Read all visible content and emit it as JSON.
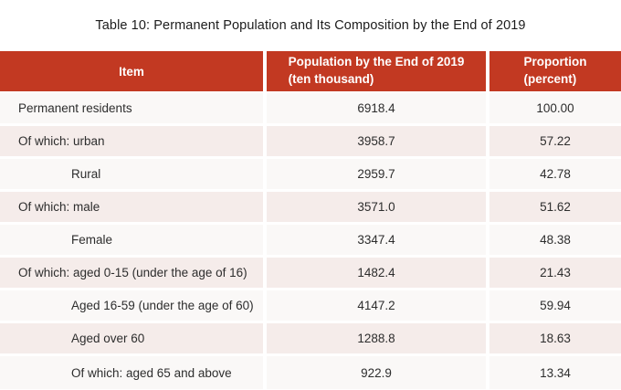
{
  "chart_data": {
    "type": "table",
    "title": "Table 10: Permanent Population and Its Composition by the End of 2019",
    "columns": [
      {
        "label": "Item"
      },
      {
        "line1": "Population by the End of 2019",
        "line2": "(ten thousand)"
      },
      {
        "line1": "Proportion",
        "line2": "(percent)"
      }
    ],
    "rows": [
      {
        "item": "Permanent residents",
        "indent": false,
        "population": "6918.4",
        "proportion": "100.00"
      },
      {
        "item": "Of which: urban",
        "indent": false,
        "population": "3958.7",
        "proportion": "57.22"
      },
      {
        "item": "Rural",
        "indent": true,
        "population": "2959.7",
        "proportion": "42.78"
      },
      {
        "item": "Of which: male",
        "indent": false,
        "population": "3571.0",
        "proportion": "51.62"
      },
      {
        "item": "Female",
        "indent": true,
        "population": "3347.4",
        "proportion": "48.38"
      },
      {
        "item": "Of which: aged 0-15 (under the age of 16)",
        "indent": false,
        "population": "1482.4",
        "proportion": "21.43"
      },
      {
        "item": "Aged 16-59 (under the age of 60)",
        "indent": true,
        "population": "4147.2",
        "proportion": "59.94"
      },
      {
        "item": "Aged over 60",
        "indent": true,
        "population": "1288.8",
        "proportion": "18.63"
      },
      {
        "item": "Of which: aged 65 and above",
        "indent": true,
        "population": "922.9",
        "proportion": "13.34"
      }
    ],
    "layout_hints": {
      "header_alignment": "center",
      "value_alignment": "center",
      "striped_rows": true
    }
  },
  "colors": {
    "header_bg": "#c23922",
    "header_text": "#ffffff",
    "row_base_bg": "#faf8f7",
    "row_stripe_bg": "#f5ecea",
    "separator": "#ffffff",
    "body_text": "#2d2d2d",
    "title_text": "#1c1c1c"
  }
}
